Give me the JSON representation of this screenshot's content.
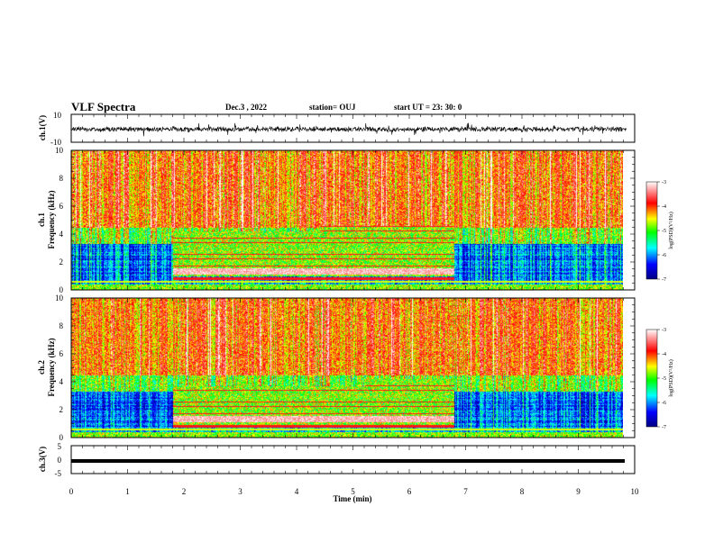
{
  "header": {
    "title": "VLF Spectra",
    "date": "Dec.3 , 2022",
    "station": "station= OUJ",
    "start": "start UT = 23: 30: 0"
  },
  "chart_data": [
    {
      "type": "line",
      "name": "ch1-waveform",
      "ylabel": "ch.1(V)",
      "ylim": [
        -10,
        10
      ],
      "yticks": [
        "10",
        "-10"
      ],
      "xlim": [
        0,
        10
      ]
    },
    {
      "type": "heatmap",
      "name": "ch1-spectrogram",
      "ylabel": "ch.1\nFrequency (kHz)",
      "ylabel_lines": [
        "ch.1",
        "Frequency (kHz)"
      ],
      "xlim": [
        0,
        10
      ],
      "ylim": [
        0,
        10
      ],
      "yticks": [
        "0",
        "2",
        "4",
        "6",
        "8",
        "10"
      ],
      "colorbar": {
        "label": "log(PSD)(V²/Hz)",
        "range": [
          -7,
          -3
        ],
        "ticks": [
          "-3",
          "-4",
          "-5",
          "-6",
          "-7"
        ],
        "colormap": [
          "#ffffff",
          "#ff0000",
          "#ffff00",
          "#00ff00",
          "#00ffff",
          "#0000ff",
          "#000080"
        ]
      },
      "segments": [
        {
          "x": [
            0,
            1.8
          ],
          "quiet_below_khz": 4
        },
        {
          "x": [
            1.8,
            6.8
          ],
          "emission_band_khz": [
            1.2,
            4.6
          ]
        },
        {
          "x": [
            6.8,
            9.8
          ],
          "quiet_below_khz": 4
        }
      ]
    },
    {
      "type": "heatmap",
      "name": "ch2-spectrogram",
      "ylabel": "ch.2\nFrequency (kHz)",
      "ylabel_lines": [
        "ch.2",
        "Frequency (kHz)"
      ],
      "xlim": [
        0,
        10
      ],
      "ylim": [
        0,
        10
      ],
      "yticks": [
        "0",
        "2",
        "4",
        "6",
        "8",
        "10"
      ],
      "colorbar": {
        "label": "log(PSD)(V²/Hz)",
        "range": [
          -7,
          -3
        ],
        "ticks": [
          "-3",
          "-4",
          "-5",
          "-6",
          "-7"
        ]
      }
    },
    {
      "type": "line",
      "name": "ch3-waveform",
      "ylabel": "ch.3(V)",
      "ylim": [
        -5,
        5
      ],
      "yticks": [
        "5",
        "0",
        "-5"
      ],
      "xlim": [
        0,
        10
      ],
      "level": -1.2
    }
  ],
  "xaxis": {
    "label": "Time (min)",
    "ticks": [
      "0",
      "1",
      "2",
      "3",
      "4",
      "5",
      "6",
      "7",
      "8",
      "9",
      "10"
    ]
  }
}
